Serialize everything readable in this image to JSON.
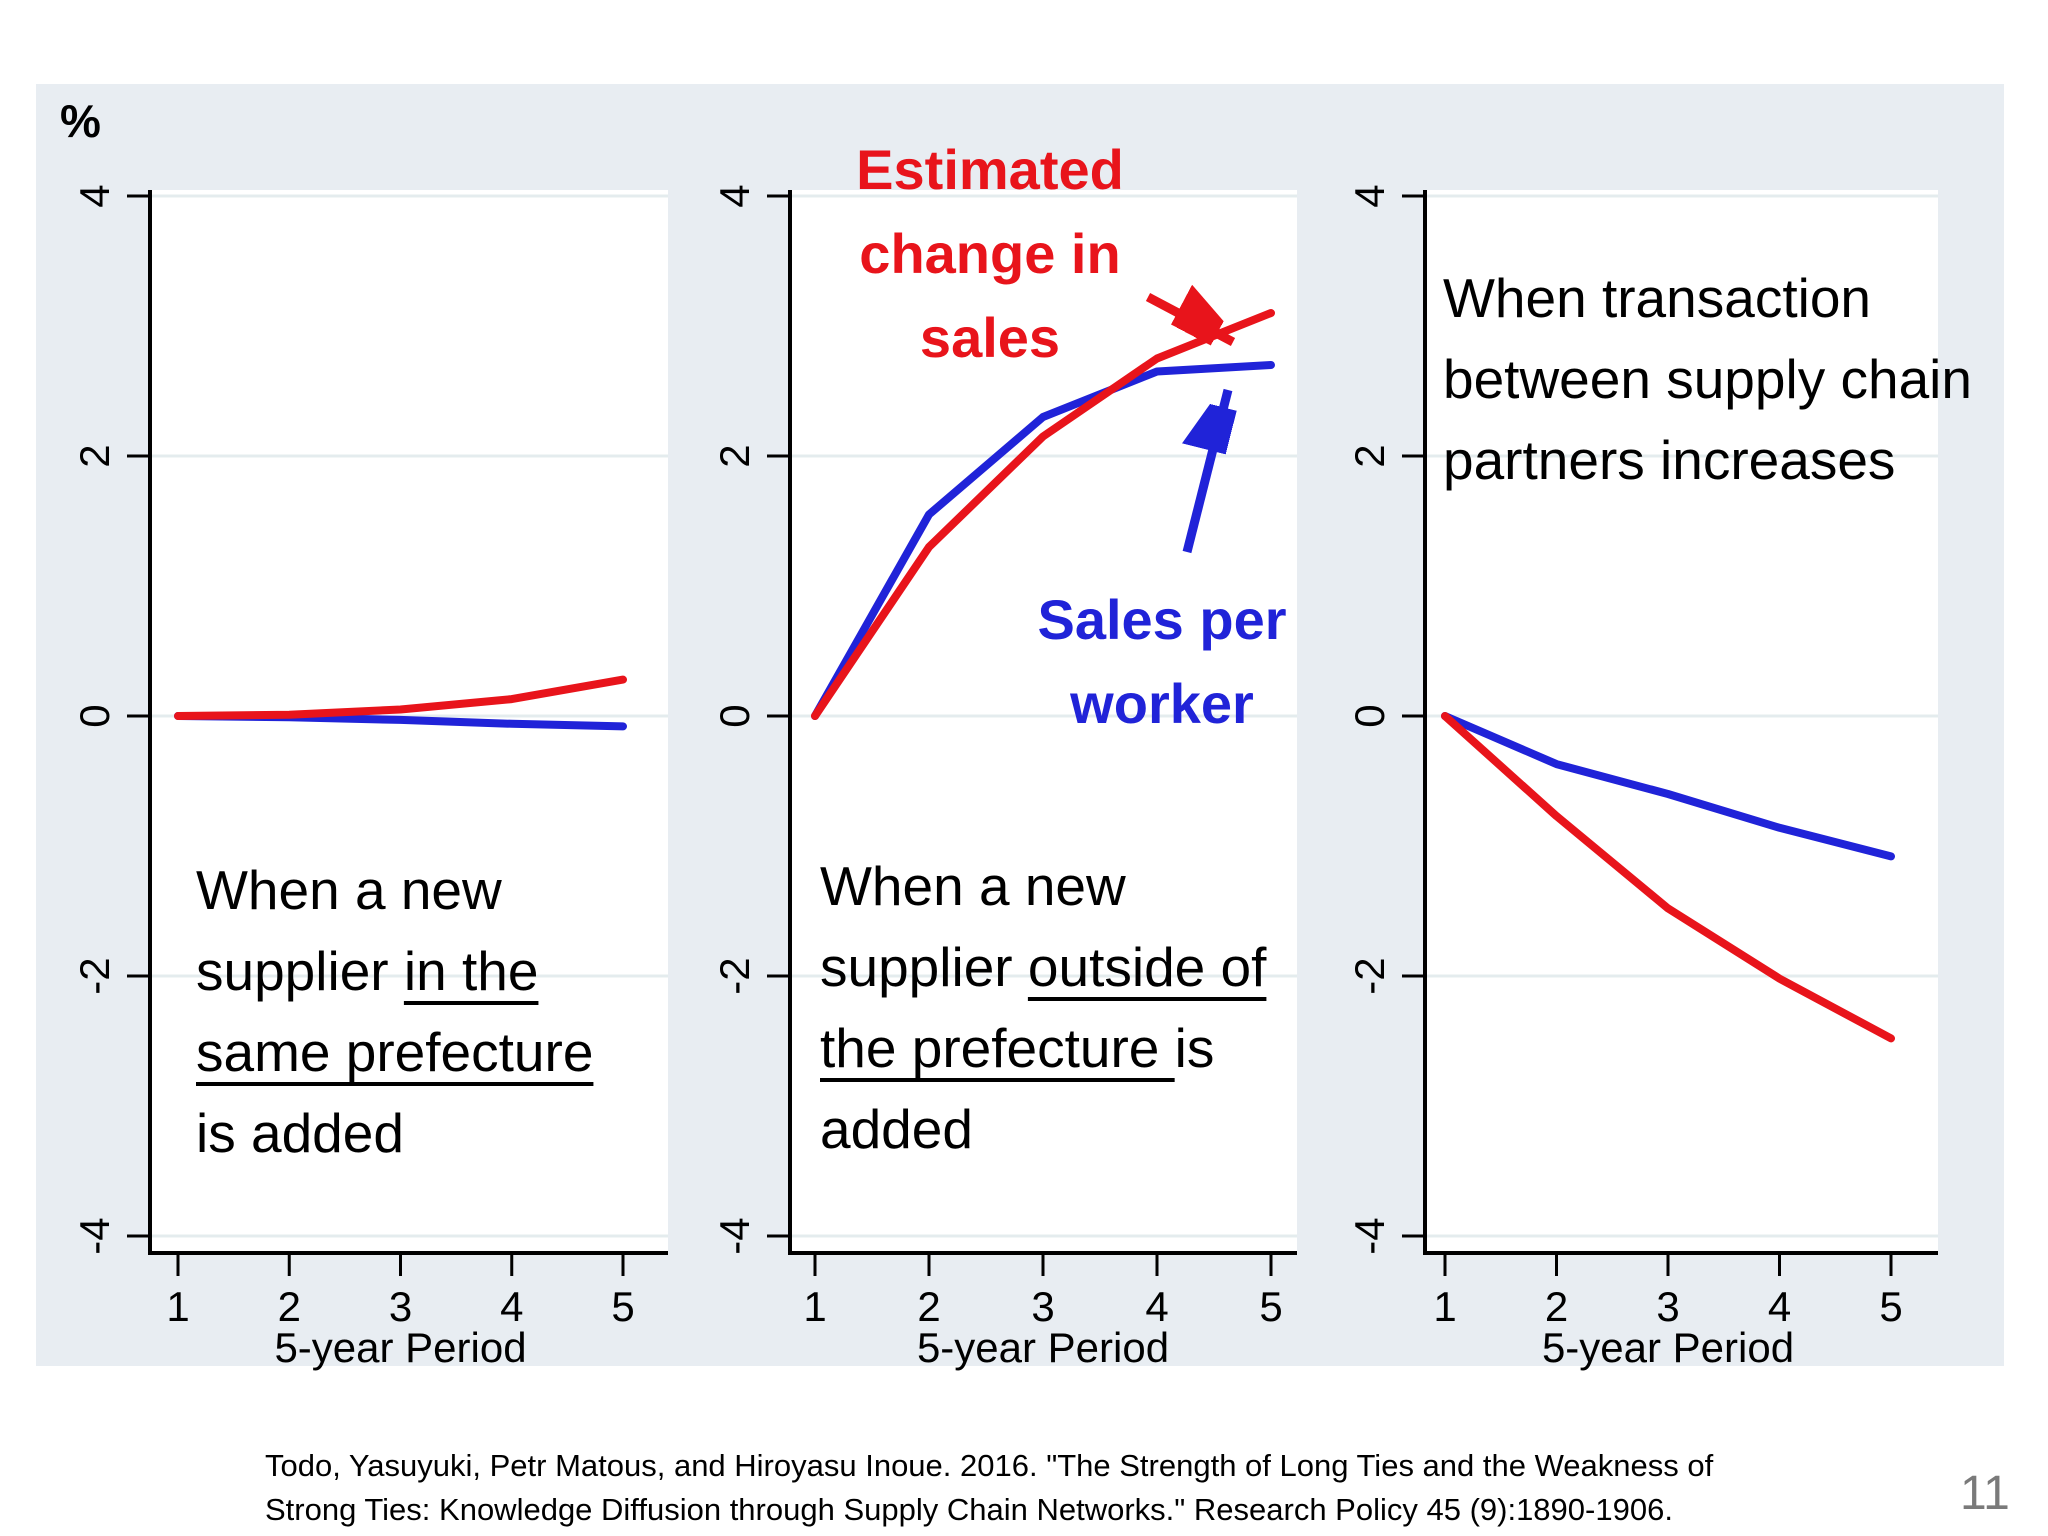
{
  "slide": {
    "y_axis_unit_label": "%",
    "page_number": "11",
    "citation_lines": [
      "Todo, Yasuyuki, Petr Matous, and Hiroyasu Inoue. 2016. \"The Strength of Long Ties and the Weakness of",
      "Strong Ties: Knowledge Diffusion through Supply Chain Networks.\" Research Policy 45 (9):1890-1906."
    ]
  },
  "colors": {
    "red": "#e8141b",
    "blue": "#2023d8",
    "band": "#e8edf2",
    "plot_bg": "#ffffff",
    "grid": "#e4ecee",
    "axis": "#000000",
    "page_number_gray": "#7a7a7a"
  },
  "middle_labels": {
    "red_label_lines": [
      "Estimated",
      "change in",
      "sales"
    ],
    "blue_label_lines": [
      "Sales per",
      "worker"
    ]
  },
  "panels": [
    {
      "x_title": "5-year Period",
      "annotation_lines": [
        [
          {
            "text": "When a new",
            "underline": false
          }
        ],
        [
          {
            "text": "supplier ",
            "underline": false
          },
          {
            "text": "in the",
            "underline": true
          }
        ],
        [
          {
            "text": "same prefecture",
            "underline": true
          }
        ],
        [
          {
            "text": "is added",
            "underline": false
          }
        ]
      ]
    },
    {
      "x_title": "5-year Period",
      "annotation_lines": [
        [
          {
            "text": "When a new",
            "underline": false
          }
        ],
        [
          {
            "text": "supplier ",
            "underline": false
          },
          {
            "text": "outside of",
            "underline": true
          }
        ],
        [
          {
            "text": "the prefecture ",
            "underline": true
          },
          {
            "text": "is",
            "underline": false
          }
        ],
        [
          {
            "text": "added",
            "underline": false
          }
        ]
      ]
    },
    {
      "x_title": "5-year Period",
      "annotation_lines": [
        [
          {
            "text": "When transaction",
            "underline": false
          }
        ],
        [
          {
            "text": "between supply chain",
            "underline": false
          }
        ],
        [
          {
            "text": "partners increases",
            "underline": false
          }
        ]
      ]
    }
  ],
  "chart_data": [
    {
      "type": "line",
      "annotation": "When a new supplier in the same prefecture is added",
      "xlabel": "5-year Period",
      "ylabel": "%",
      "x": [
        1,
        2,
        3,
        4,
        5
      ],
      "xticks": [
        1,
        2,
        3,
        4,
        5
      ],
      "yticks": [
        4,
        2,
        0,
        -2,
        -4
      ],
      "ylim": [
        -4.35,
        4.35
      ],
      "grid": true,
      "legend_position": "none",
      "series": [
        {
          "name": "Estimated change in sales",
          "color_key": "red",
          "values": [
            0,
            0.01,
            0.05,
            0.13,
            0.28
          ]
        },
        {
          "name": "Sales per worker",
          "color_key": "blue",
          "values": [
            0,
            -0.01,
            -0.03,
            -0.06,
            -0.08
          ]
        }
      ]
    },
    {
      "type": "line",
      "annotation": "When a new supplier outside of the prefecture is added",
      "xlabel": "5-year Period",
      "ylabel": "%",
      "x": [
        1,
        2,
        3,
        4,
        5
      ],
      "xticks": [
        1,
        2,
        3,
        4,
        5
      ],
      "yticks": [
        4,
        2,
        0,
        -2,
        -4
      ],
      "ylim": [
        -4.35,
        4.35
      ],
      "grid": true,
      "legend_position": "inline-labels",
      "series": [
        {
          "name": "Estimated change in sales",
          "color_key": "red",
          "values": [
            0,
            1.3,
            2.15,
            2.75,
            3.1
          ]
        },
        {
          "name": "Sales per worker",
          "color_key": "blue",
          "values": [
            0,
            1.55,
            2.3,
            2.65,
            2.7
          ]
        }
      ]
    },
    {
      "type": "line",
      "annotation": "When transaction between supply chain partners increases",
      "xlabel": "5-year Period",
      "ylabel": "%",
      "x": [
        1,
        2,
        3,
        4,
        5
      ],
      "xticks": [
        1,
        2,
        3,
        4,
        5
      ],
      "yticks": [
        4,
        2,
        0,
        -2,
        -4
      ],
      "ylim": [
        -4.35,
        4.35
      ],
      "grid": true,
      "legend_position": "none",
      "series": [
        {
          "name": "Estimated change in sales",
          "color_key": "red",
          "values": [
            0,
            -0.77,
            -1.48,
            -2.02,
            -2.48
          ]
        },
        {
          "name": "Sales per worker",
          "color_key": "blue",
          "values": [
            0,
            -0.37,
            -0.6,
            -0.86,
            -1.08
          ]
        }
      ]
    }
  ]
}
